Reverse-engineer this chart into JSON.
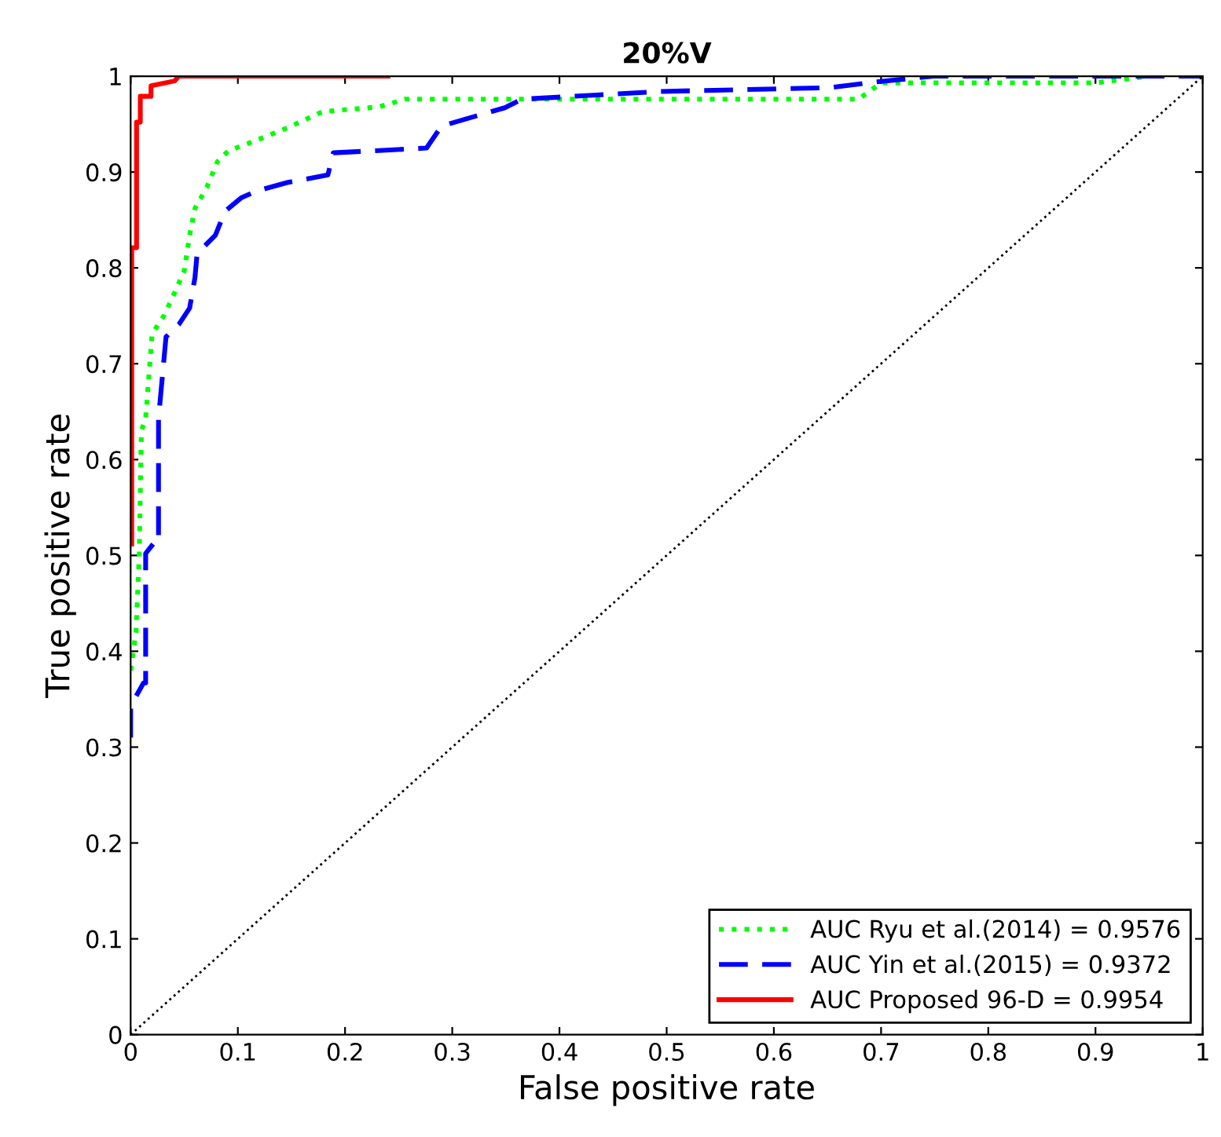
{
  "chart_data": {
    "type": "line",
    "title": "20%V",
    "xlabel": "False positive rate",
    "ylabel": "True positive rate",
    "xlim": [
      0,
      1
    ],
    "ylim": [
      0,
      1
    ],
    "xticks": [
      0,
      0.1,
      0.2,
      0.3,
      0.4,
      0.5,
      0.6,
      0.7,
      0.8,
      0.9,
      1
    ],
    "yticks": [
      0,
      0.1,
      0.2,
      0.3,
      0.4,
      0.5,
      0.6,
      0.7,
      0.8,
      0.9,
      1
    ],
    "grid": false,
    "legend": "bottom right",
    "marker": "none",
    "series": [
      {
        "name": "AUC Ryu et al.(2014) = 0.9576",
        "color": "#00ff00",
        "line_style": "dotted",
        "x": [
          0,
          0.005,
          0.008,
          0.01,
          0.014,
          0.02,
          0.031,
          0.041,
          0.05,
          0.055,
          0.06,
          0.071,
          0.081,
          0.091,
          0.117,
          0.146,
          0.179,
          0.232,
          0.256,
          0.3,
          0.5,
          0.679,
          0.7,
          0.9,
          0.95
        ],
        "values": [
          0.38,
          0.42,
          0.5,
          0.63,
          0.643,
          0.731,
          0.75,
          0.774,
          0.797,
          0.834,
          0.862,
          0.884,
          0.911,
          0.922,
          0.933,
          0.946,
          0.963,
          0.968,
          0.976,
          0.976,
          0.976,
          0.976,
          0.993,
          0.993,
          1
        ]
      },
      {
        "name": "AUC Yin et al.(2015) = 0.9372",
        "color": "#0000ff",
        "line_style": "dashed",
        "x": [
          0,
          0,
          0.012,
          0.014,
          0.014,
          0.021,
          0.026,
          0.026,
          0.033,
          0.045,
          0.055,
          0.06,
          0.062,
          0.079,
          0.088,
          0.103,
          0.117,
          0.146,
          0.184,
          0.189,
          0.276,
          0.29,
          0.327,
          0.349,
          0.365,
          0.493,
          0.652,
          0.695,
          0.749,
          1
        ],
        "values": [
          0.31,
          0.343,
          0.367,
          0.367,
          0.502,
          0.512,
          0.512,
          0.643,
          0.728,
          0.741,
          0.758,
          0.79,
          0.815,
          0.834,
          0.859,
          0.873,
          0.88,
          0.889,
          0.897,
          0.92,
          0.925,
          0.948,
          0.96,
          0.967,
          0.976,
          0.984,
          0.988,
          0.994,
          1,
          1
        ]
      },
      {
        "name": "AUC Proposed 96-D = 0.9954",
        "color": "#ff0000",
        "line_style": "solid",
        "x": [
          0.001,
          0.001,
          0.0055,
          0.0055,
          0.009,
          0.009,
          0.019,
          0.019,
          0.041,
          0.045,
          0.24
        ],
        "values": [
          0.512,
          0.821,
          0.821,
          0.952,
          0.952,
          0.979,
          0.979,
          0.99,
          0.995,
          1,
          1
        ]
      },
      {
        "color": "#000000",
        "line_style": "dotted",
        "x": [
          0,
          1
        ],
        "values": [
          0,
          1
        ]
      }
    ]
  }
}
